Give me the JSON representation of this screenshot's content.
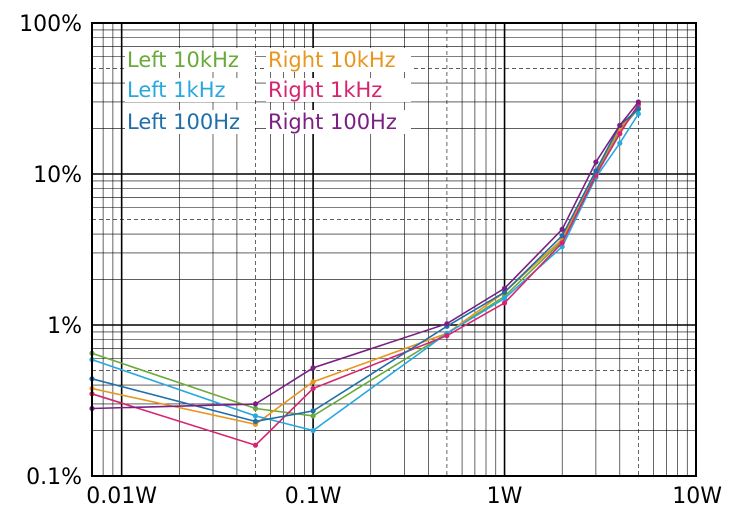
{
  "chart_data": {
    "type": "line",
    "title": "",
    "xlabel": "",
    "ylabel": "",
    "x_scale": "log",
    "y_scale": "log",
    "xlim": [
      0.007,
      10
    ],
    "ylim": [
      0.1,
      100
    ],
    "grid": true,
    "legend_position": "top-left",
    "x_tick_labels": [
      {
        "value": 0.01,
        "label": "0.01W"
      },
      {
        "value": 0.1,
        "label": "0.1W"
      },
      {
        "value": 1,
        "label": "1W"
      },
      {
        "value": 10,
        "label": "10W"
      }
    ],
    "y_tick_labels": [
      {
        "value": 100,
        "label": "100%"
      },
      {
        "value": 10,
        "label": "10%"
      },
      {
        "value": 1,
        "label": "1%"
      },
      {
        "value": 0.1,
        "label": "0.1%"
      }
    ],
    "x_dashed_lines": [
      0.05,
      0.5,
      5
    ],
    "y_dashed_lines": [
      0.5,
      5,
      50
    ],
    "series": [
      {
        "name": "Left 10kHz",
        "color": "#6aaa3a",
        "x": [
          0.007,
          0.05,
          0.1,
          0.5,
          1,
          2,
          3,
          4,
          5
        ],
        "y": [
          0.65,
          0.28,
          0.25,
          0.88,
          1.55,
          3.6,
          10.2,
          19.5,
          27
        ]
      },
      {
        "name": "Right 10kHz",
        "color": "#e8961e",
        "x": [
          0.007,
          0.05,
          0.1,
          0.5,
          1,
          2,
          3,
          4,
          5
        ],
        "y": [
          0.38,
          0.22,
          0.42,
          0.88,
          1.65,
          3.7,
          10.5,
          20,
          28
        ]
      },
      {
        "name": "Left 1kHz",
        "color": "#29a8e0",
        "x": [
          0.007,
          0.05,
          0.1,
          0.5,
          1,
          2,
          3,
          4,
          5
        ],
        "y": [
          0.59,
          0.25,
          0.2,
          0.88,
          1.5,
          3.3,
          9.5,
          16,
          25
        ]
      },
      {
        "name": "Right 1kHz",
        "color": "#d6246e",
        "x": [
          0.007,
          0.05,
          0.1,
          0.5,
          1,
          2,
          3,
          4,
          5
        ],
        "y": [
          0.35,
          0.16,
          0.38,
          0.85,
          1.4,
          3.5,
          9.8,
          18.5,
          29
        ]
      },
      {
        "name": "Left 100Hz",
        "color": "#1f6fa8",
        "x": [
          0.007,
          0.05,
          0.1,
          0.5,
          1,
          2,
          3,
          4,
          5
        ],
        "y": [
          0.44,
          0.23,
          0.27,
          0.98,
          1.65,
          3.9,
          10.5,
          21,
          27
        ]
      },
      {
        "name": "Right 100Hz",
        "color": "#7a2082",
        "x": [
          0.007,
          0.05,
          0.1,
          0.5,
          1,
          2,
          3,
          4,
          5
        ],
        "y": [
          0.28,
          0.3,
          0.52,
          1.02,
          1.75,
          4.3,
          12,
          21,
          30
        ]
      }
    ]
  }
}
